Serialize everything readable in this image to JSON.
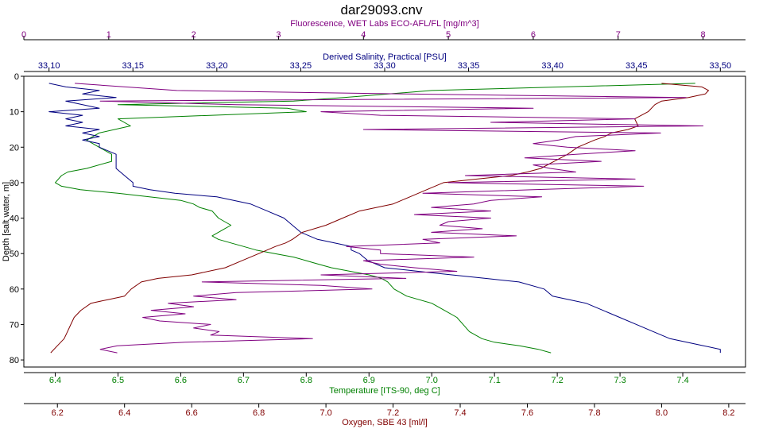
{
  "chart_data": {
    "type": "line",
    "title": "dar29093.cnv",
    "grid": false,
    "legend": "none",
    "y_axis": {
      "label": "Depth [salt water, m]",
      "range": [
        0,
        82
      ],
      "inverted": true,
      "ticks": [
        "0",
        "10",
        "20",
        "30",
        "40",
        "50",
        "60",
        "70",
        "80"
      ],
      "tick_values": [
        0,
        10,
        20,
        30,
        40,
        50,
        60,
        70,
        80
      ],
      "color": "#000000"
    },
    "axes": [
      {
        "id": "fluorescence",
        "label": "Fluorescence, WET Labs ECO-AFL/FL [mg/m^3]",
        "position": "top-outer",
        "color": "#800080",
        "range": [
          0,
          8.5
        ],
        "ticks": [
          "0",
          "1",
          "2",
          "3",
          "4",
          "5",
          "6",
          "7",
          "8"
        ],
        "tick_values": [
          0,
          1,
          2,
          3,
          4,
          5,
          6,
          7,
          8
        ]
      },
      {
        "id": "salinity",
        "label": "Derived Salinity, Practical [PSU]",
        "position": "top-inner",
        "color": "#000080",
        "range": [
          33.085,
          33.515
        ],
        "ticks": [
          "33.10",
          "33.15",
          "33.20",
          "33.25",
          "33.30",
          "33.35",
          "33.40",
          "33.45",
          "33.50"
        ],
        "tick_values": [
          33.1,
          33.15,
          33.2,
          33.25,
          33.3,
          33.35,
          33.4,
          33.45,
          33.5
        ]
      },
      {
        "id": "temperature",
        "label": "Temperature [ITS-90, deg C]",
        "position": "bottom-inner",
        "color": "#008000",
        "range": [
          6.35,
          7.5
        ],
        "ticks": [
          "6.4",
          "6.5",
          "6.6",
          "6.7",
          "6.8",
          "6.9",
          "7.0",
          "7.1",
          "7.2",
          "7.3",
          "7.4"
        ],
        "tick_values": [
          6.4,
          6.5,
          6.6,
          6.7,
          6.8,
          6.9,
          7.0,
          7.1,
          7.2,
          7.3,
          7.4
        ]
      },
      {
        "id": "oxygen",
        "label": "Oxygen, SBE 43 [ml/l]",
        "position": "bottom-outer",
        "color": "#800000",
        "range": [
          6.1,
          8.25
        ],
        "ticks": [
          "6.2",
          "6.4",
          "6.6",
          "6.8",
          "7.0",
          "7.2",
          "7.4",
          "7.6",
          "7.8",
          "8.0",
          "8.2"
        ],
        "tick_values": [
          6.2,
          6.4,
          6.6,
          6.8,
          7.0,
          7.2,
          7.4,
          7.6,
          7.8,
          8.0,
          8.2
        ]
      }
    ],
    "series": [
      {
        "axis": "temperature",
        "color": "#008000",
        "depth": [
          2,
          4,
          6,
          7,
          8,
          9,
          10,
          12,
          14,
          16,
          18,
          20,
          22,
          24,
          26,
          27,
          28,
          30,
          31,
          32,
          33,
          34,
          35,
          36,
          37,
          38,
          40,
          42,
          43,
          44,
          45,
          46,
          47,
          48,
          49,
          50,
          51,
          52,
          53,
          54,
          55,
          56,
          57,
          58,
          60,
          62,
          64,
          66,
          68,
          70,
          72,
          74,
          75,
          76,
          77,
          78
        ],
        "values": [
          7.42,
          7.0,
          6.86,
          6.78,
          6.5,
          6.77,
          6.8,
          6.5,
          6.52,
          6.47,
          6.45,
          6.47,
          6.49,
          6.49,
          6.45,
          6.42,
          6.41,
          6.4,
          6.41,
          6.44,
          6.5,
          6.55,
          6.6,
          6.62,
          6.63,
          6.65,
          6.66,
          6.68,
          6.67,
          6.66,
          6.65,
          6.66,
          6.68,
          6.7,
          6.72,
          6.75,
          6.78,
          6.8,
          6.82,
          6.84,
          6.87,
          6.9,
          6.92,
          6.93,
          6.94,
          6.96,
          7.0,
          7.02,
          7.04,
          7.05,
          7.06,
          7.08,
          7.1,
          7.14,
          7.17,
          7.19
        ]
      },
      {
        "axis": "salinity",
        "color": "#000080",
        "depth": [
          2,
          3,
          4,
          5,
          6,
          7,
          8,
          9,
          10,
          11,
          12,
          13,
          14,
          15,
          16,
          17,
          18,
          19,
          20,
          22,
          24,
          26,
          28,
          30,
          31,
          32,
          33,
          34,
          36,
          38,
          40,
          42,
          44,
          46,
          47,
          48,
          49,
          50,
          52,
          54,
          55,
          56,
          57,
          58,
          60,
          62,
          63,
          64,
          66,
          68,
          70,
          72,
          74,
          75,
          76,
          77,
          78
        ],
        "values": [
          33.1,
          33.11,
          33.13,
          33.12,
          33.14,
          33.11,
          33.12,
          33.13,
          33.1,
          33.12,
          33.11,
          33.12,
          33.11,
          33.13,
          33.12,
          33.13,
          33.12,
          33.13,
          33.13,
          33.14,
          33.14,
          33.14,
          33.145,
          33.15,
          33.15,
          33.16,
          33.175,
          33.2,
          33.22,
          33.23,
          33.24,
          33.245,
          33.25,
          33.26,
          33.27,
          33.28,
          33.28,
          33.285,
          33.29,
          33.3,
          33.32,
          33.34,
          33.36,
          33.38,
          33.395,
          33.4,
          33.41,
          33.42,
          33.43,
          33.44,
          33.45,
          33.46,
          33.47,
          33.48,
          33.49,
          33.5,
          33.5
        ]
      },
      {
        "axis": "oxygen",
        "color": "#800000",
        "depth": [
          2,
          3,
          4,
          5,
          6,
          7,
          8,
          10,
          12,
          14,
          15,
          16,
          17,
          18,
          20,
          22,
          24,
          26,
          27,
          28,
          29,
          30,
          32,
          34,
          36,
          38,
          40,
          42,
          44,
          46,
          47,
          48,
          50,
          52,
          54,
          56,
          57,
          58,
          60,
          62,
          63,
          64,
          66,
          68,
          70,
          72,
          74,
          76,
          78
        ],
        "values": [
          8.0,
          8.12,
          8.14,
          8.13,
          8.08,
          8.0,
          7.98,
          7.96,
          7.92,
          7.93,
          7.9,
          7.85,
          7.83,
          7.8,
          7.75,
          7.72,
          7.68,
          7.64,
          7.6,
          7.55,
          7.45,
          7.35,
          7.3,
          7.25,
          7.2,
          7.1,
          7.05,
          7.0,
          6.93,
          6.9,
          6.88,
          6.85,
          6.8,
          6.75,
          6.7,
          6.6,
          6.5,
          6.45,
          6.42,
          6.4,
          6.35,
          6.3,
          6.27,
          6.25,
          6.24,
          6.23,
          6.22,
          6.2,
          6.18
        ]
      },
      {
        "axis": "fluorescence",
        "color": "#800080",
        "depth": [
          2,
          4,
          5,
          6,
          7,
          8,
          9,
          10,
          11,
          12,
          13,
          14,
          15,
          16,
          17,
          18,
          19,
          20,
          21,
          22,
          23,
          24,
          25,
          26,
          27,
          28,
          29,
          30,
          31,
          32,
          33,
          34,
          35,
          36,
          37,
          38,
          39,
          40,
          41,
          42,
          43,
          44,
          45,
          46,
          47,
          48,
          49,
          50,
          51,
          52,
          53,
          54,
          55,
          56,
          57,
          58,
          59,
          60,
          61,
          62,
          63,
          64,
          65,
          66,
          67,
          68,
          69,
          70,
          71,
          72,
          73,
          74,
          75,
          76,
          77,
          78
        ],
        "values": [
          0.6,
          1.8,
          4.5,
          7.8,
          0.9,
          2.5,
          6.0,
          3.5,
          4.2,
          7.2,
          5.5,
          8.0,
          4.0,
          7.5,
          6.5,
          6.3,
          6.0,
          6.4,
          7.2,
          6.5,
          5.9,
          6.8,
          6.0,
          6.2,
          6.5,
          5.2,
          7.2,
          5.0,
          7.3,
          6.0,
          4.7,
          6.1,
          5.5,
          5.3,
          4.8,
          5.5,
          4.6,
          5.5,
          5.0,
          4.9,
          5.4,
          4.8,
          5.8,
          4.7,
          4.9,
          3.8,
          4.2,
          4.2,
          5.3,
          4.0,
          4.2,
          4.6,
          5.1,
          3.5,
          4.5,
          2.1,
          3.5,
          4.1,
          2.5,
          2.0,
          2.5,
          1.7,
          2.0,
          1.5,
          1.9,
          1.4,
          1.6,
          2.2,
          2.0,
          2.3,
          2.2,
          3.4,
          1.9,
          1.1,
          0.9,
          1.1
        ]
      }
    ]
  }
}
